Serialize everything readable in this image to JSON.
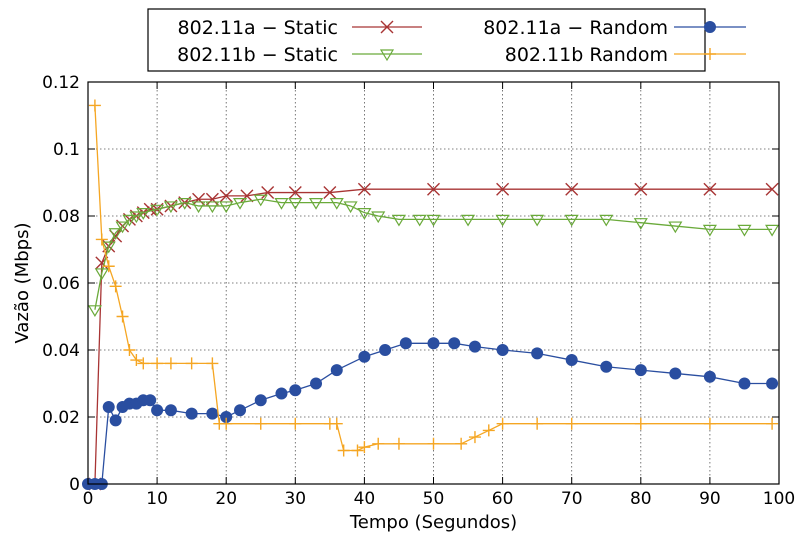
{
  "chart_data": {
    "type": "line",
    "title": "",
    "xlabel": "Tempo (Segundos)",
    "ylabel": "Vazão (Mbps)",
    "xlim": [
      0,
      100
    ],
    "ylim": [
      0,
      0.12
    ],
    "x_ticks": [
      0,
      10,
      20,
      30,
      40,
      50,
      60,
      70,
      80,
      90,
      100
    ],
    "y_ticks": [
      0,
      0.02,
      0.04,
      0.06,
      0.08,
      0.1,
      0.12
    ],
    "x_tick_labels": [
      "0",
      "10",
      "20",
      "30",
      "40",
      "50",
      "60",
      "70",
      "80",
      "90",
      "100"
    ],
    "y_tick_labels": [
      "0",
      "0.02",
      "0.04",
      "0.06",
      "0.08",
      "0.1",
      "0.12"
    ],
    "grid": true,
    "legend_position": "top-outside",
    "series": [
      {
        "name": "802.11a − Static",
        "color": "#a83434",
        "marker": "x",
        "points": [
          [
            1,
            0.0
          ],
          [
            2,
            0.066
          ],
          [
            3,
            0.071
          ],
          [
            4,
            0.074
          ],
          [
            5,
            0.077
          ],
          [
            6,
            0.079
          ],
          [
            7,
            0.08
          ],
          [
            8,
            0.081
          ],
          [
            9,
            0.082
          ],
          [
            10,
            0.082
          ],
          [
            12,
            0.083
          ],
          [
            14,
            0.084
          ],
          [
            16,
            0.085
          ],
          [
            18,
            0.085
          ],
          [
            20,
            0.086
          ],
          [
            23,
            0.086
          ],
          [
            26,
            0.087
          ],
          [
            30,
            0.087
          ],
          [
            35,
            0.087
          ],
          [
            40,
            0.088
          ],
          [
            50,
            0.088
          ],
          [
            60,
            0.088
          ],
          [
            70,
            0.088
          ],
          [
            80,
            0.088
          ],
          [
            90,
            0.088
          ],
          [
            99,
            0.088
          ]
        ]
      },
      {
        "name": "802.11b − Static",
        "color": "#6aaa3a",
        "marker": "triangle-down",
        "points": [
          [
            1,
            0.052
          ],
          [
            2,
            0.063
          ],
          [
            3,
            0.071
          ],
          [
            4,
            0.075
          ],
          [
            5,
            0.077
          ],
          [
            6,
            0.079
          ],
          [
            7,
            0.08
          ],
          [
            8,
            0.081
          ],
          [
            10,
            0.082
          ],
          [
            12,
            0.083
          ],
          [
            14,
            0.084
          ],
          [
            16,
            0.083
          ],
          [
            18,
            0.083
          ],
          [
            20,
            0.083
          ],
          [
            22,
            0.084
          ],
          [
            25,
            0.085
          ],
          [
            28,
            0.084
          ],
          [
            30,
            0.084
          ],
          [
            33,
            0.084
          ],
          [
            36,
            0.084
          ],
          [
            38,
            0.083
          ],
          [
            40,
            0.081
          ],
          [
            42,
            0.08
          ],
          [
            45,
            0.079
          ],
          [
            48,
            0.079
          ],
          [
            50,
            0.079
          ],
          [
            55,
            0.079
          ],
          [
            60,
            0.079
          ],
          [
            65,
            0.079
          ],
          [
            70,
            0.079
          ],
          [
            75,
            0.079
          ],
          [
            80,
            0.078
          ],
          [
            85,
            0.077
          ],
          [
            90,
            0.076
          ],
          [
            95,
            0.076
          ],
          [
            99,
            0.076
          ]
        ]
      },
      {
        "name": "802.11a − Random",
        "color": "#2a4ea0",
        "marker": "circle",
        "points": [
          [
            0,
            0.0
          ],
          [
            1,
            0.0
          ],
          [
            2,
            0.0
          ],
          [
            3,
            0.023
          ],
          [
            4,
            0.019
          ],
          [
            5,
            0.023
          ],
          [
            6,
            0.024
          ],
          [
            7,
            0.024
          ],
          [
            8,
            0.025
          ],
          [
            9,
            0.025
          ],
          [
            10,
            0.022
          ],
          [
            12,
            0.022
          ],
          [
            15,
            0.021
          ],
          [
            18,
            0.021
          ],
          [
            20,
            0.02
          ],
          [
            22,
            0.022
          ],
          [
            25,
            0.025
          ],
          [
            28,
            0.027
          ],
          [
            30,
            0.028
          ],
          [
            33,
            0.03
          ],
          [
            36,
            0.034
          ],
          [
            40,
            0.038
          ],
          [
            43,
            0.04
          ],
          [
            46,
            0.042
          ],
          [
            50,
            0.042
          ],
          [
            53,
            0.042
          ],
          [
            56,
            0.041
          ],
          [
            60,
            0.04
          ],
          [
            65,
            0.039
          ],
          [
            70,
            0.037
          ],
          [
            75,
            0.035
          ],
          [
            80,
            0.034
          ],
          [
            85,
            0.033
          ],
          [
            90,
            0.032
          ],
          [
            95,
            0.03
          ],
          [
            99,
            0.03
          ]
        ]
      },
      {
        "name": "802.11b Random",
        "color": "#f5a623",
        "marker": "plus",
        "points": [
          [
            1,
            0.113
          ],
          [
            2,
            0.073
          ],
          [
            3,
            0.065
          ],
          [
            4,
            0.059
          ],
          [
            5,
            0.05
          ],
          [
            6,
            0.04
          ],
          [
            7,
            0.037
          ],
          [
            8,
            0.036
          ],
          [
            10,
            0.036
          ],
          [
            12,
            0.036
          ],
          [
            15,
            0.036
          ],
          [
            18,
            0.036
          ],
          [
            19,
            0.018
          ],
          [
            20,
            0.018
          ],
          [
            25,
            0.018
          ],
          [
            30,
            0.018
          ],
          [
            35,
            0.018
          ],
          [
            36,
            0.018
          ],
          [
            37,
            0.01
          ],
          [
            39,
            0.01
          ],
          [
            40,
            0.011
          ],
          [
            42,
            0.012
          ],
          [
            45,
            0.012
          ],
          [
            50,
            0.012
          ],
          [
            54,
            0.012
          ],
          [
            56,
            0.014
          ],
          [
            58,
            0.016
          ],
          [
            60,
            0.018
          ],
          [
            65,
            0.018
          ],
          [
            70,
            0.018
          ],
          [
            80,
            0.018
          ],
          [
            90,
            0.018
          ],
          [
            99,
            0.018
          ]
        ]
      }
    ]
  }
}
